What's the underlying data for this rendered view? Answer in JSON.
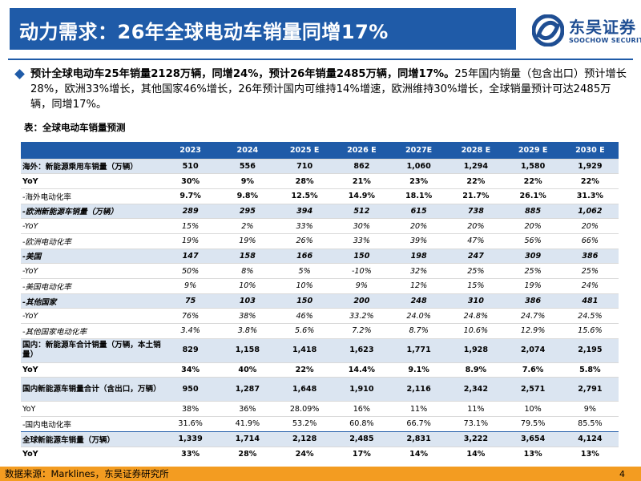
{
  "header": {
    "title": "动力需求：26年全球电动车销量同增17%"
  },
  "logo": {
    "name_cn": "东吴证券",
    "name_en": "SOOCHOW SECURITIES",
    "icon": "soochow-logo-icon"
  },
  "bullet": {
    "bold_text": "预计全球电动车25年销量2128万辆，同增24%，预计26年销量2485万辆，同增17%。",
    "normal_text": "25年国内销量（包含出口）预计增长28%，欧洲33%增长，其他国家46%增长，26年预计国内可维持14%增速，欧洲维持30%增长，全球销量预计可达2485万辆，同增17%。"
  },
  "table_caption": "表：全球电动车销量预测",
  "table": {
    "headers": [
      "",
      "2023",
      "2024",
      "2025 E",
      "2026 E",
      "2027E",
      "2028 E",
      "2029 E",
      "2030 E"
    ],
    "rows": [
      {
        "style": "b shade",
        "label": "海外：新能源乘用车销量（万辆）",
        "values": [
          "510",
          "556",
          "710",
          "862",
          "1,060",
          "1,294",
          "1,580",
          "1,929"
        ]
      },
      {
        "style": "b",
        "label": "YoY",
        "values": [
          "30%",
          "9%",
          "28%",
          "21%",
          "23%",
          "22%",
          "22%",
          "22%"
        ]
      },
      {
        "style": "vb",
        "label": "-海外电动化率",
        "values": [
          "9.7%",
          "9.8%",
          "12.5%",
          "14.9%",
          "18.1%",
          "21.7%",
          "26.1%",
          "31.3%"
        ]
      },
      {
        "style": "bi shade",
        "label": "-欧洲新能源车销量（万辆）",
        "values": [
          "289",
          "295",
          "394",
          "512",
          "615",
          "738",
          "885",
          "1,062"
        ]
      },
      {
        "style": "i",
        "label": "-YoY",
        "values": [
          "15%",
          "2%",
          "33%",
          "30%",
          "20%",
          "20%",
          "20%",
          "20%"
        ]
      },
      {
        "style": "i",
        "label": "-欧洲电动化率",
        "values": [
          "19%",
          "19%",
          "26%",
          "33%",
          "39%",
          "47%",
          "56%",
          "66%"
        ]
      },
      {
        "style": "bi shade",
        "label": "-美国",
        "values": [
          "147",
          "158",
          "166",
          "150",
          "198",
          "247",
          "309",
          "386"
        ]
      },
      {
        "style": "i",
        "label": "-YoY",
        "values": [
          "50%",
          "8%",
          "5%",
          "-10%",
          "32%",
          "25%",
          "25%",
          "25%"
        ]
      },
      {
        "style": "i",
        "label": "-美国电动化率",
        "values": [
          "9%",
          "10%",
          "10%",
          "9%",
          "12%",
          "15%",
          "19%",
          "24%"
        ]
      },
      {
        "style": "bi shade",
        "label": "-其他国家",
        "values": [
          "75",
          "103",
          "150",
          "200",
          "248",
          "310",
          "386",
          "481"
        ]
      },
      {
        "style": "i",
        "label": "-YoY",
        "values": [
          "76%",
          "38%",
          "46%",
          "33.2%",
          "24.0%",
          "24.8%",
          "24.7%",
          "24.5%"
        ]
      },
      {
        "style": "i",
        "label": "-其他国家电动化率",
        "values": [
          "3.4%",
          "3.8%",
          "5.6%",
          "7.2%",
          "8.7%",
          "10.6%",
          "12.9%",
          "15.6%"
        ]
      },
      {
        "style": "b shade tall",
        "label": "国内：新能源车合计销量（万辆，本土销量）",
        "values": [
          "829",
          "1,158",
          "1,418",
          "1,623",
          "1,771",
          "1,928",
          "2,074",
          "2,195"
        ]
      },
      {
        "style": "b",
        "label": "YoY",
        "values": [
          "34%",
          "40%",
          "22%",
          "14.4%",
          "9.1%",
          "8.9%",
          "7.6%",
          "5.8%"
        ]
      },
      {
        "style": "b shade tall",
        "label": "国内新能源车销量合计（含出口，万辆）",
        "values": [
          "950",
          "1,287",
          "1,648",
          "1,910",
          "2,116",
          "2,342",
          "2,571",
          "2,791"
        ]
      },
      {
        "style": "",
        "label": "YoY",
        "values": [
          "38%",
          "36%",
          "28.09%",
          "16%",
          "11%",
          "11%",
          "10%",
          "9%"
        ]
      },
      {
        "style": "",
        "label": "-国内电动化率",
        "values": [
          "31.6%",
          "41.9%",
          "53.2%",
          "60.8%",
          "66.7%",
          "73.1%",
          "79.5%",
          "85.5%"
        ]
      },
      {
        "style": "b shade topline",
        "label": "全球新能源车销量（万辆）",
        "values": [
          "1,339",
          "1,714",
          "2,128",
          "2,485",
          "2,831",
          "3,222",
          "3,654",
          "4,124"
        ]
      },
      {
        "style": "b",
        "label": "YoY",
        "values": [
          "33%",
          "28%",
          "24%",
          "17%",
          "14%",
          "14%",
          "13%",
          "13%"
        ]
      }
    ]
  },
  "footer": {
    "source": "数据来源：Marklines，东吴证券研究所",
    "page_number": "4"
  },
  "colors": {
    "title_bar": "#1f5ba8",
    "row_shade": "#dbe5f1",
    "footer_bar": "#f39c21",
    "logo": "#1f4e93"
  }
}
